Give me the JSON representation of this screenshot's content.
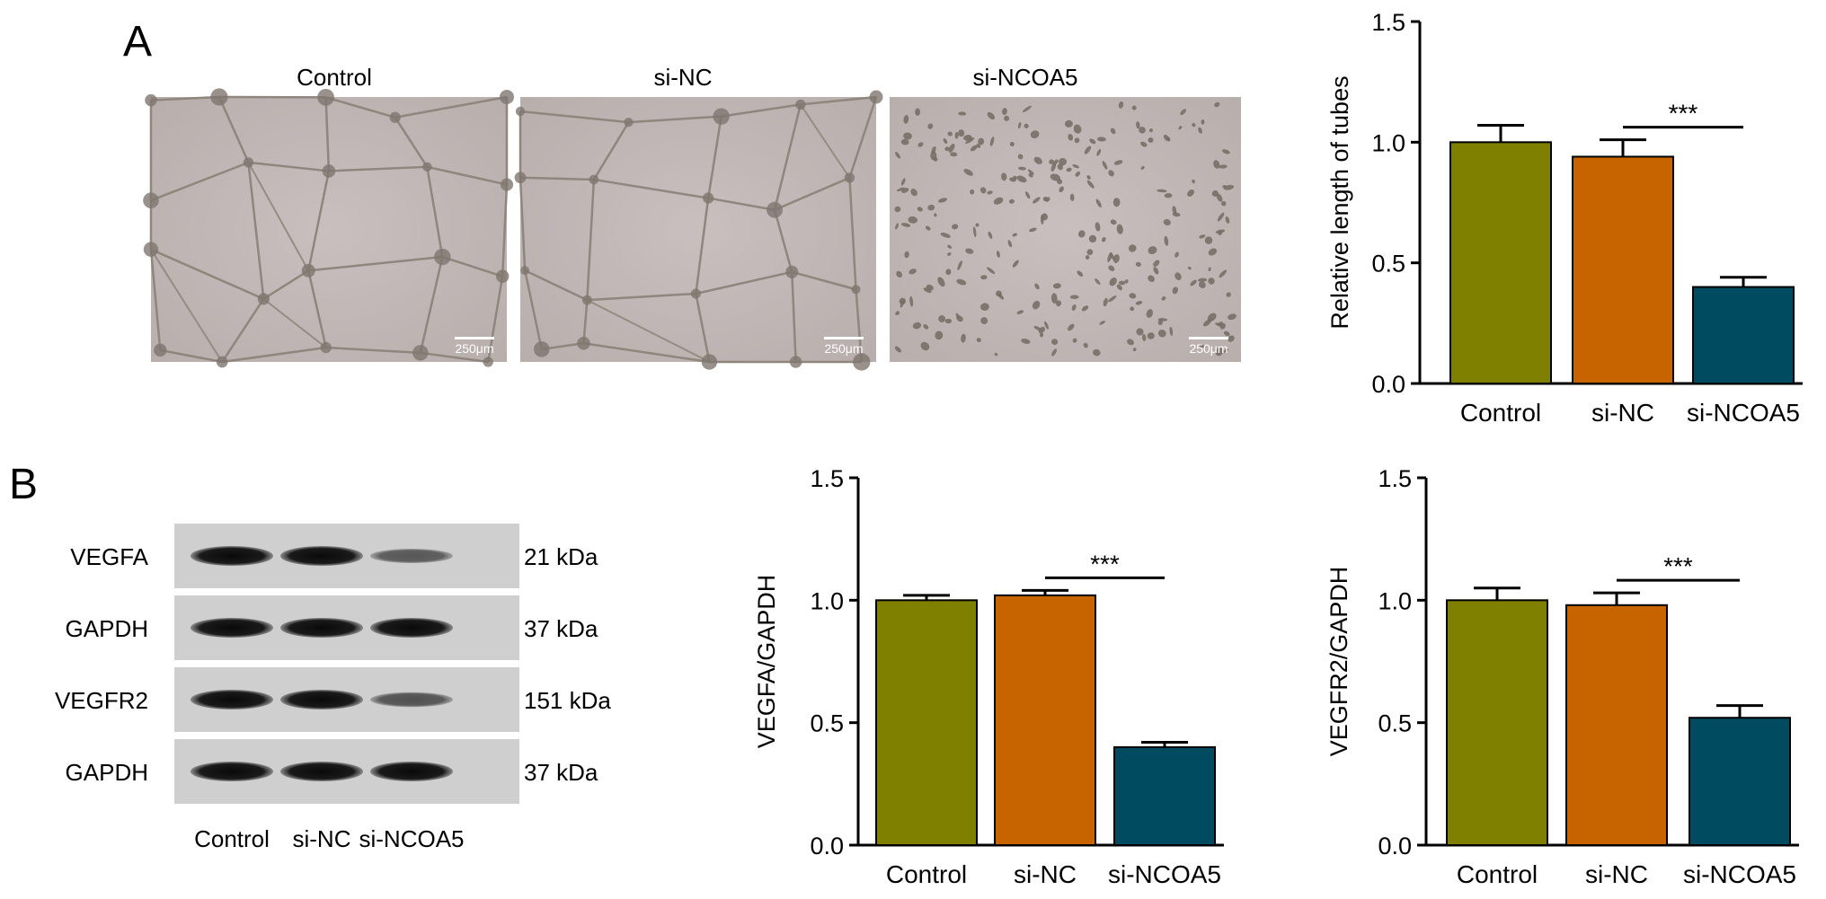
{
  "panels": {
    "a": "A",
    "b": "B"
  },
  "micrographs": [
    {
      "label": "Control",
      "scale_bar": "250μm",
      "pattern": "network"
    },
    {
      "label": "si-NC",
      "scale_bar": "250μm",
      "pattern": "network"
    },
    {
      "label": "si-NCOA5",
      "scale_bar": "250μm",
      "pattern": "scattered"
    }
  ],
  "western_blot": {
    "rows": [
      {
        "protein": "VEGFA",
        "kda": "21 kDa",
        "intensity": [
          1.0,
          1.0,
          0.4
        ]
      },
      {
        "protein": "GAPDH",
        "kda": "37 kDa",
        "intensity": [
          1.0,
          1.0,
          1.0
        ]
      },
      {
        "protein": "VEGFR2",
        "kda": "151 kDa",
        "intensity": [
          1.0,
          1.0,
          0.45
        ]
      },
      {
        "protein": "GAPDH",
        "kda": "37 kDa",
        "intensity": [
          1.0,
          1.0,
          1.0
        ]
      }
    ],
    "lanes": [
      "Control",
      "si-NC",
      "si-NCOA5"
    ]
  },
  "colors": {
    "control": "#808000",
    "si_nc": "#C86400",
    "si_ncoa5": "#004B5F"
  },
  "chart_data": [
    {
      "type": "bar",
      "categories": [
        "Control",
        "si-NC",
        "si-NCOA5"
      ],
      "values": [
        1.0,
        0.94,
        0.4
      ],
      "errors": [
        0.07,
        0.07,
        0.04
      ],
      "ylabel": "Relative length of tubes",
      "ylim": [
        0,
        1.5
      ],
      "yticks": [
        "0.0",
        "0.5",
        "1.0",
        "1.5"
      ],
      "significance": {
        "label": "***",
        "from": "si-NC",
        "to": "si-NCOA5"
      }
    },
    {
      "type": "bar",
      "categories": [
        "Control",
        "si-NC",
        "si-NCOA5"
      ],
      "values": [
        1.0,
        1.02,
        0.4
      ],
      "errors": [
        0.02,
        0.02,
        0.02
      ],
      "ylabel": "VEGFA/GAPDH",
      "ylim": [
        0,
        1.5
      ],
      "yticks": [
        "0.0",
        "0.5",
        "1.0",
        "1.5"
      ],
      "significance": {
        "label": "***",
        "from": "si-NC",
        "to": "si-NCOA5"
      }
    },
    {
      "type": "bar",
      "categories": [
        "Control",
        "si-NC",
        "si-NCOA5"
      ],
      "values": [
        1.0,
        0.98,
        0.52
      ],
      "errors": [
        0.05,
        0.05,
        0.05
      ],
      "ylabel": "VEGFR2/GAPDH",
      "ylim": [
        0,
        1.5
      ],
      "yticks": [
        "0.0",
        "0.5",
        "1.0",
        "1.5"
      ],
      "significance": {
        "label": "***",
        "from": "si-NC",
        "to": "si-NCOA5"
      }
    }
  ]
}
